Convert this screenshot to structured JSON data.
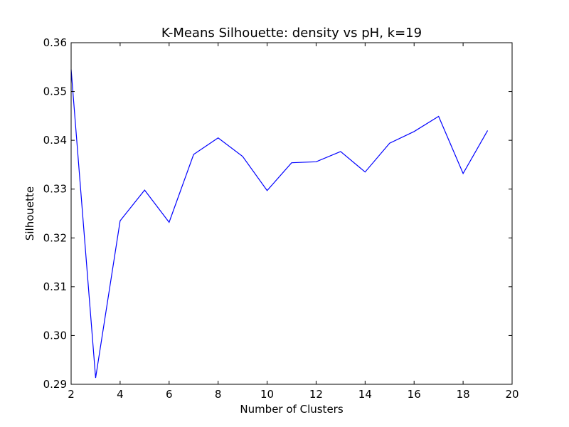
{
  "chart_data": {
    "type": "line",
    "title": "K-Means Silhouette: density vs pH, k=19",
    "xlabel": "Number of Clusters",
    "ylabel": "Silhouette",
    "xlim": [
      2,
      20
    ],
    "ylim": [
      0.29,
      0.36
    ],
    "xticks": [
      2,
      4,
      6,
      8,
      10,
      12,
      14,
      16,
      18,
      20
    ],
    "xtick_labels": [
      "2",
      "4",
      "6",
      "8",
      "10",
      "12",
      "14",
      "16",
      "18",
      "20"
    ],
    "yticks": [
      0.29,
      0.3,
      0.31,
      0.32,
      0.33,
      0.34,
      0.35,
      0.36
    ],
    "ytick_labels": [
      "0.29",
      "0.30",
      "0.31",
      "0.32",
      "0.33",
      "0.34",
      "0.35",
      "0.36"
    ],
    "grid": false,
    "series": [
      {
        "color": "#0000ff",
        "x": [
          2,
          3,
          4,
          5,
          6,
          7,
          8,
          9,
          10,
          11,
          12,
          13,
          14,
          15,
          16,
          17,
          18,
          19
        ],
        "values": [
          0.3545,
          0.2913,
          0.3235,
          0.3298,
          0.3232,
          0.3371,
          0.3405,
          0.3367,
          0.3297,
          0.3354,
          0.3356,
          0.3377,
          0.3335,
          0.3394,
          0.3418,
          0.3449,
          0.3332,
          0.342
        ]
      }
    ]
  }
}
